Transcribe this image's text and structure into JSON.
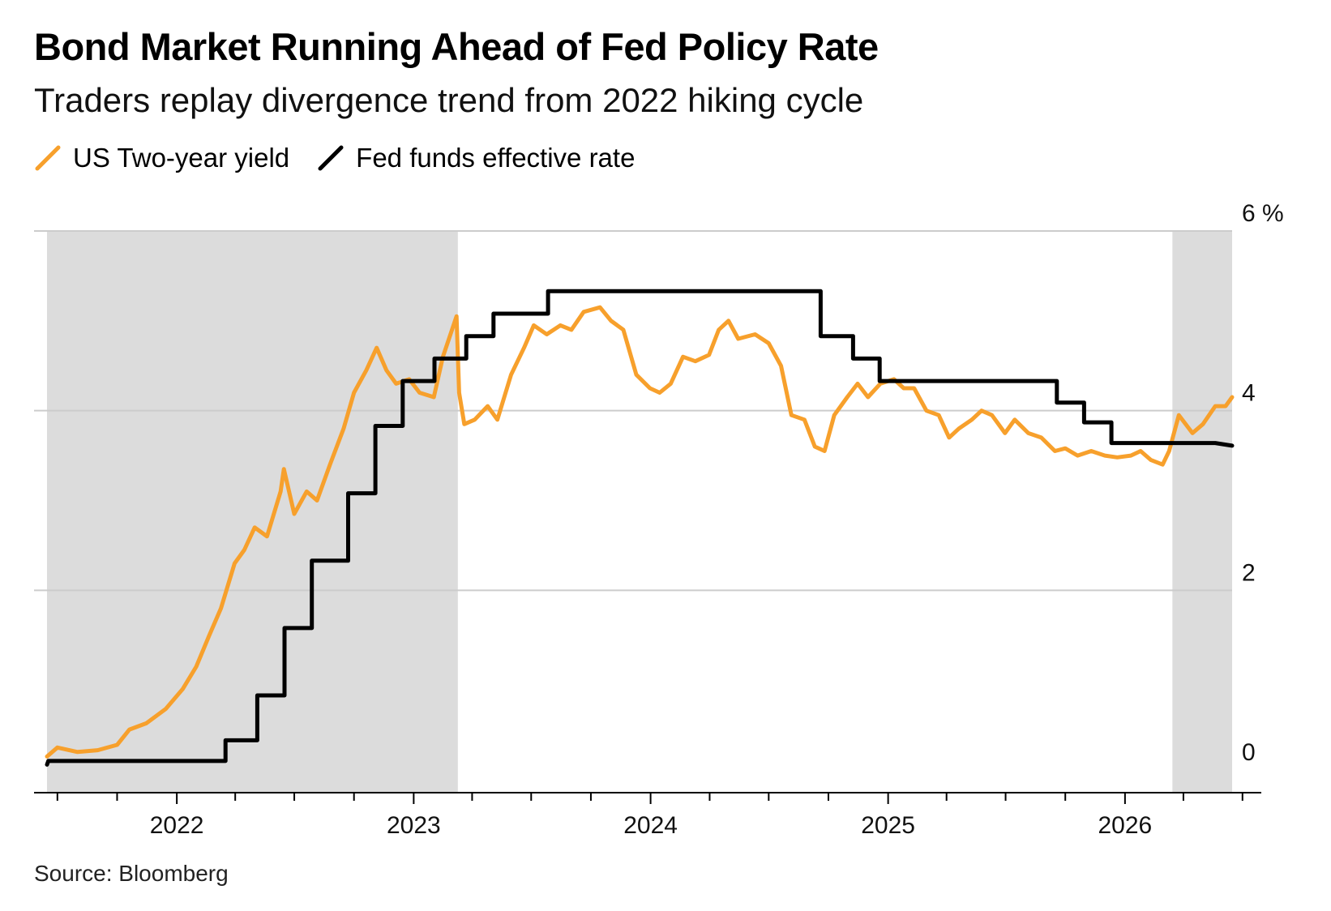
{
  "title": "Bond Market Running Ahead of Fed Policy Rate",
  "subtitle": "Traders replay divergence trend from 2022 hiking cycle",
  "source": "Source: Bloomberg",
  "colors": {
    "two_year": "#f7a02c",
    "fed_funds": "#000000",
    "shade": "#dcdcdc",
    "grid": "#cccccc"
  },
  "legend": [
    {
      "label": "US Two-year yield",
      "color": "#f7a02c",
      "icon": "diagonal-line-icon"
    },
    {
      "label": "Fed funds effective rate",
      "color": "#000000",
      "icon": "diagonal-line-icon"
    }
  ],
  "chart_data": {
    "type": "line",
    "x_axis": {
      "type": "date",
      "range": [
        "2021-06-15",
        "2026-07-10"
      ],
      "tick_labels": [
        "2022",
        "2023",
        "2024",
        "2025",
        "2026"
      ]
    },
    "y_axis": {
      "range": [
        -0.5,
        6
      ],
      "position": "right",
      "tick_labels": [
        "0",
        "2",
        "4",
        "6 %"
      ],
      "ticks": [
        0,
        2,
        4,
        6
      ],
      "grid": true
    },
    "shaded_periods": [
      {
        "start": "2021-06-15",
        "end": "2023-03-10"
      },
      {
        "start": "2026-03-15",
        "end": "2026-06-15"
      }
    ],
    "series": [
      {
        "name": "US Two-year yield",
        "color": "#f7a02c",
        "points": [
          [
            "2021-06-15",
            0.15
          ],
          [
            "2021-07-01",
            0.25
          ],
          [
            "2021-08-01",
            0.2
          ],
          [
            "2021-09-01",
            0.22
          ],
          [
            "2021-10-01",
            0.28
          ],
          [
            "2021-10-20",
            0.45
          ],
          [
            "2021-11-15",
            0.52
          ],
          [
            "2021-12-15",
            0.68
          ],
          [
            "2022-01-10",
            0.9
          ],
          [
            "2022-01-31",
            1.15
          ],
          [
            "2022-02-20",
            1.5
          ],
          [
            "2022-03-10",
            1.8
          ],
          [
            "2022-03-31",
            2.3
          ],
          [
            "2022-04-15",
            2.45
          ],
          [
            "2022-05-01",
            2.7
          ],
          [
            "2022-05-20",
            2.6
          ],
          [
            "2022-06-10",
            3.1
          ],
          [
            "2022-06-15",
            3.35
          ],
          [
            "2022-07-01",
            2.85
          ],
          [
            "2022-07-20",
            3.1
          ],
          [
            "2022-08-05",
            3.0
          ],
          [
            "2022-08-25",
            3.4
          ],
          [
            "2022-09-15",
            3.8
          ],
          [
            "2022-10-01",
            4.2
          ],
          [
            "2022-10-20",
            4.45
          ],
          [
            "2022-11-05",
            4.7
          ],
          [
            "2022-11-20",
            4.45
          ],
          [
            "2022-12-05",
            4.3
          ],
          [
            "2022-12-25",
            4.35
          ],
          [
            "2023-01-10",
            4.2
          ],
          [
            "2023-02-01",
            4.15
          ],
          [
            "2023-02-15",
            4.6
          ],
          [
            "2023-03-08",
            5.05
          ],
          [
            "2023-03-12",
            4.2
          ],
          [
            "2023-03-20",
            3.85
          ],
          [
            "2023-04-05",
            3.9
          ],
          [
            "2023-04-25",
            4.05
          ],
          [
            "2023-05-10",
            3.9
          ],
          [
            "2023-05-31",
            4.4
          ],
          [
            "2023-06-20",
            4.7
          ],
          [
            "2023-07-05",
            4.95
          ],
          [
            "2023-07-25",
            4.85
          ],
          [
            "2023-08-15",
            4.95
          ],
          [
            "2023-09-01",
            4.9
          ],
          [
            "2023-09-20",
            5.1
          ],
          [
            "2023-10-15",
            5.15
          ],
          [
            "2023-11-01",
            5.0
          ],
          [
            "2023-11-20",
            4.9
          ],
          [
            "2023-12-10",
            4.4
          ],
          [
            "2023-12-31",
            4.25
          ],
          [
            "2024-01-15",
            4.2
          ],
          [
            "2024-02-01",
            4.3
          ],
          [
            "2024-02-20",
            4.6
          ],
          [
            "2024-03-10",
            4.55
          ],
          [
            "2024-03-31",
            4.62
          ],
          [
            "2024-04-15",
            4.9
          ],
          [
            "2024-04-30",
            5.0
          ],
          [
            "2024-05-15",
            4.8
          ],
          [
            "2024-06-10",
            4.85
          ],
          [
            "2024-07-01",
            4.75
          ],
          [
            "2024-07-20",
            4.5
          ],
          [
            "2024-08-05",
            3.95
          ],
          [
            "2024-08-25",
            3.9
          ],
          [
            "2024-09-10",
            3.6
          ],
          [
            "2024-09-25",
            3.55
          ],
          [
            "2024-10-10",
            3.95
          ],
          [
            "2024-10-30",
            4.15
          ],
          [
            "2024-11-15",
            4.3
          ],
          [
            "2024-12-01",
            4.15
          ],
          [
            "2024-12-20",
            4.3
          ],
          [
            "2025-01-10",
            4.35
          ],
          [
            "2025-01-25",
            4.25
          ],
          [
            "2025-02-10",
            4.25
          ],
          [
            "2025-03-01",
            4.0
          ],
          [
            "2025-03-20",
            3.95
          ],
          [
            "2025-04-05",
            3.7
          ],
          [
            "2025-04-20",
            3.8
          ],
          [
            "2025-05-10",
            3.9
          ],
          [
            "2025-05-25",
            4.0
          ],
          [
            "2025-06-10",
            3.95
          ],
          [
            "2025-06-30",
            3.75
          ],
          [
            "2025-07-15",
            3.9
          ],
          [
            "2025-08-05",
            3.75
          ],
          [
            "2025-08-25",
            3.7
          ],
          [
            "2025-09-15",
            3.55
          ],
          [
            "2025-10-01",
            3.58
          ],
          [
            "2025-10-20",
            3.5
          ],
          [
            "2025-11-10",
            3.55
          ],
          [
            "2025-12-01",
            3.5
          ],
          [
            "2025-12-20",
            3.48
          ],
          [
            "2026-01-10",
            3.5
          ],
          [
            "2026-01-25",
            3.55
          ],
          [
            "2026-02-10",
            3.45
          ],
          [
            "2026-02-28",
            3.4
          ],
          [
            "2026-03-10",
            3.55
          ],
          [
            "2026-03-25",
            3.95
          ],
          [
            "2026-04-15",
            3.75
          ],
          [
            "2026-05-01",
            3.85
          ],
          [
            "2026-05-20",
            4.05
          ],
          [
            "2026-06-05",
            4.05
          ],
          [
            "2026-06-15",
            4.15
          ]
        ]
      },
      {
        "name": "Fed funds effective rate",
        "color": "#000000",
        "points": [
          [
            "2021-06-15",
            0.06
          ],
          [
            "2021-06-17",
            0.1
          ],
          [
            "2022-03-17",
            0.1
          ],
          [
            "2022-03-17",
            0.33
          ],
          [
            "2022-05-05",
            0.33
          ],
          [
            "2022-05-05",
            0.83
          ],
          [
            "2022-06-16",
            0.83
          ],
          [
            "2022-06-16",
            1.58
          ],
          [
            "2022-07-28",
            1.58
          ],
          [
            "2022-07-28",
            2.33
          ],
          [
            "2022-09-22",
            2.33
          ],
          [
            "2022-09-22",
            3.08
          ],
          [
            "2022-11-03",
            3.08
          ],
          [
            "2022-11-03",
            3.83
          ],
          [
            "2022-12-15",
            3.83
          ],
          [
            "2022-12-15",
            4.33
          ],
          [
            "2023-02-02",
            4.33
          ],
          [
            "2023-02-02",
            4.58
          ],
          [
            "2023-03-23",
            4.58
          ],
          [
            "2023-03-23",
            4.83
          ],
          [
            "2023-05-04",
            4.83
          ],
          [
            "2023-05-04",
            5.08
          ],
          [
            "2023-07-27",
            5.08
          ],
          [
            "2023-07-27",
            5.33
          ],
          [
            "2024-09-19",
            5.33
          ],
          [
            "2024-09-19",
            4.83
          ],
          [
            "2024-11-08",
            4.83
          ],
          [
            "2024-11-08",
            4.58
          ],
          [
            "2024-12-19",
            4.58
          ],
          [
            "2024-12-19",
            4.33
          ],
          [
            "2025-09-18",
            4.33
          ],
          [
            "2025-09-18",
            4.09
          ],
          [
            "2025-10-30",
            4.09
          ],
          [
            "2025-10-30",
            3.87
          ],
          [
            "2025-12-11",
            3.87
          ],
          [
            "2025-12-11",
            3.64
          ],
          [
            "2026-05-20",
            3.64
          ],
          [
            "2026-06-15",
            3.61
          ]
        ]
      }
    ]
  }
}
